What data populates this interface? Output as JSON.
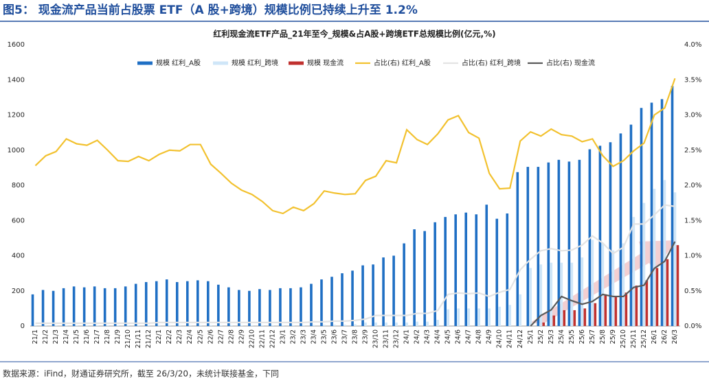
{
  "header": "图5：  现金流产品当前占股票 ETF（A 股+跨境）规模比例已持续上升至 1.2%",
  "source": "数据来源：iFind，财通证券研究所，截至 26/3/20，未统计联接基金，下同",
  "chart_data": {
    "type": "bar-line",
    "title": "红利现金流ETF产品_21年至今_规模&占A股+跨境ETF总规模比例(亿元,%)",
    "categories": [
      "21/1",
      "21/2",
      "21/3",
      "21/4",
      "21/5",
      "21/6",
      "21/7",
      "21/8",
      "21/9",
      "21/10",
      "21/11",
      "21/12",
      "22/1",
      "22/2",
      "22/3",
      "22/4",
      "22/5",
      "22/6",
      "22/7",
      "22/8",
      "22/9",
      "22/10",
      "22/11",
      "22/12",
      "23/1",
      "23/2",
      "23/3",
      "23/4",
      "23/5",
      "23/6",
      "23/7",
      "23/8",
      "23/9",
      "23/10",
      "23/11",
      "23/12",
      "24/1",
      "24/2",
      "24/3",
      "24/4",
      "24/5",
      "24/6",
      "24/7",
      "24/8",
      "24/9",
      "24/10",
      "24/11",
      "24/12",
      "25/1",
      "25/2",
      "25/3",
      "25/4",
      "25/5",
      "25/6",
      "25/7",
      "25/8",
      "25/9",
      "25/10",
      "25/11",
      "25/12",
      "26/1",
      "26/2",
      "26/3"
    ],
    "series": [
      {
        "name": "规模 红利_A股",
        "kind": "bar",
        "color": "#1f6fc4",
        "values": [
          180,
          205,
          200,
          215,
          225,
          220,
          225,
          215,
          215,
          225,
          240,
          250,
          255,
          265,
          250,
          255,
          260,
          255,
          235,
          220,
          205,
          200,
          210,
          205,
          215,
          215,
          220,
          240,
          265,
          280,
          300,
          315,
          345,
          350,
          390,
          400,
          470,
          550,
          540,
          590,
          620,
          635,
          645,
          635,
          690,
          610,
          640,
          875,
          905,
          905,
          930,
          945,
          935,
          945,
          1005,
          1025,
          1045,
          1095,
          1145,
          1240,
          1270,
          1290,
          1365
        ]
      },
      {
        "name": "规模 红利_跨境",
        "kind": "bar",
        "color": "#cfe6f8",
        "values": [
          5,
          5,
          5,
          5,
          5,
          5,
          5,
          5,
          5,
          5,
          5,
          5,
          5,
          5,
          5,
          5,
          5,
          5,
          5,
          5,
          5,
          5,
          5,
          5,
          5,
          5,
          5,
          6,
          7,
          8,
          8,
          10,
          20,
          20,
          20,
          20,
          20,
          25,
          25,
          35,
          95,
          100,
          100,
          100,
          100,
          110,
          120,
          180,
          330,
          350,
          360,
          360,
          360,
          390,
          490,
          470,
          430,
          470,
          620,
          700,
          780,
          830,
          760
        ]
      },
      {
        "name": "规模 现金流",
        "kind": "bar",
        "color": "#c0312f",
        "values": [
          null,
          null,
          null,
          null,
          null,
          null,
          null,
          null,
          null,
          null,
          null,
          null,
          null,
          null,
          null,
          null,
          null,
          null,
          null,
          null,
          null,
          null,
          null,
          null,
          null,
          null,
          null,
          null,
          null,
          null,
          null,
          null,
          null,
          null,
          null,
          null,
          null,
          null,
          null,
          null,
          null,
          null,
          null,
          null,
          null,
          null,
          null,
          null,
          null,
          20,
          60,
          90,
          90,
          100,
          130,
          180,
          170,
          190,
          230,
          260,
          330,
          380,
          460
        ]
      },
      {
        "name": "占比(右) 红利_A股",
        "kind": "line",
        "axis": "y2",
        "color": "#f2c12e",
        "values": [
          2.28,
          2.42,
          2.48,
          2.66,
          2.59,
          2.57,
          2.64,
          2.5,
          2.35,
          2.34,
          2.41,
          2.35,
          2.44,
          2.5,
          2.49,
          2.58,
          2.58,
          2.3,
          2.17,
          2.03,
          1.93,
          1.87,
          1.77,
          1.64,
          1.6,
          1.69,
          1.64,
          1.74,
          1.92,
          1.89,
          1.87,
          1.88,
          2.07,
          2.13,
          2.35,
          2.32,
          2.79,
          2.65,
          2.58,
          2.73,
          2.93,
          2.99,
          2.75,
          2.67,
          2.17,
          1.95,
          1.96,
          2.63,
          2.76,
          2.7,
          2.8,
          2.72,
          2.7,
          2.62,
          2.66,
          2.42,
          2.27,
          2.35,
          2.49,
          2.6,
          3.0,
          3.1,
          3.52
        ]
      },
      {
        "name": "占比(右) 红利_跨境",
        "kind": "line",
        "axis": "y2",
        "color": "#e3e3e3",
        "values": [
          0.04,
          0.04,
          0.04,
          0.04,
          0.04,
          0.04,
          0.04,
          0.04,
          0.04,
          0.04,
          0.04,
          0.04,
          0.05,
          0.05,
          0.05,
          0.05,
          0.05,
          0.05,
          0.05,
          0.05,
          0.05,
          0.05,
          0.05,
          0.05,
          0.05,
          0.05,
          0.05,
          0.06,
          0.06,
          0.07,
          0.07,
          0.08,
          0.1,
          0.15,
          0.15,
          0.15,
          0.15,
          0.18,
          0.18,
          0.22,
          0.45,
          0.47,
          0.46,
          0.47,
          0.42,
          0.48,
          0.52,
          0.8,
          0.95,
          1.07,
          1.1,
          1.07,
          1.08,
          1.15,
          1.28,
          1.18,
          1.03,
          1.12,
          1.45,
          1.45,
          1.58,
          1.72,
          1.7
        ]
      },
      {
        "name": "占比(右) 现金流",
        "kind": "line",
        "axis": "y2",
        "color": "#595959",
        "values": [
          null,
          null,
          null,
          null,
          null,
          null,
          null,
          null,
          null,
          null,
          null,
          null,
          null,
          null,
          null,
          null,
          null,
          null,
          null,
          null,
          null,
          null,
          null,
          null,
          null,
          null,
          null,
          null,
          null,
          null,
          null,
          null,
          null,
          null,
          null,
          null,
          null,
          null,
          null,
          null,
          null,
          null,
          null,
          null,
          null,
          null,
          null,
          null,
          0.0,
          0.15,
          0.23,
          0.42,
          0.36,
          0.31,
          0.35,
          0.45,
          0.42,
          0.42,
          0.55,
          0.58,
          0.82,
          0.92,
          1.2
        ]
      }
    ],
    "ylim": [
      0,
      1600
    ],
    "yticks": [
      0,
      200,
      400,
      600,
      800,
      1000,
      1200,
      1400,
      1600
    ],
    "y2lim": [
      0,
      4
    ],
    "y2ticks": [
      {
        "value": 0,
        "label": "0.0%"
      },
      {
        "value": 0.5,
        "label": "0.5%"
      },
      {
        "value": 1,
        "label": "1.0%"
      },
      {
        "value": 1.5,
        "label": "1.5%"
      },
      {
        "value": 2,
        "label": "2.0%"
      },
      {
        "value": 2.5,
        "label": "2.5%"
      },
      {
        "value": 3,
        "label": "3.0%"
      },
      {
        "value": 3.5,
        "label": "3.5%"
      },
      {
        "value": 4,
        "label": "4.0%"
      }
    ],
    "legend": "top",
    "grid": false
  }
}
